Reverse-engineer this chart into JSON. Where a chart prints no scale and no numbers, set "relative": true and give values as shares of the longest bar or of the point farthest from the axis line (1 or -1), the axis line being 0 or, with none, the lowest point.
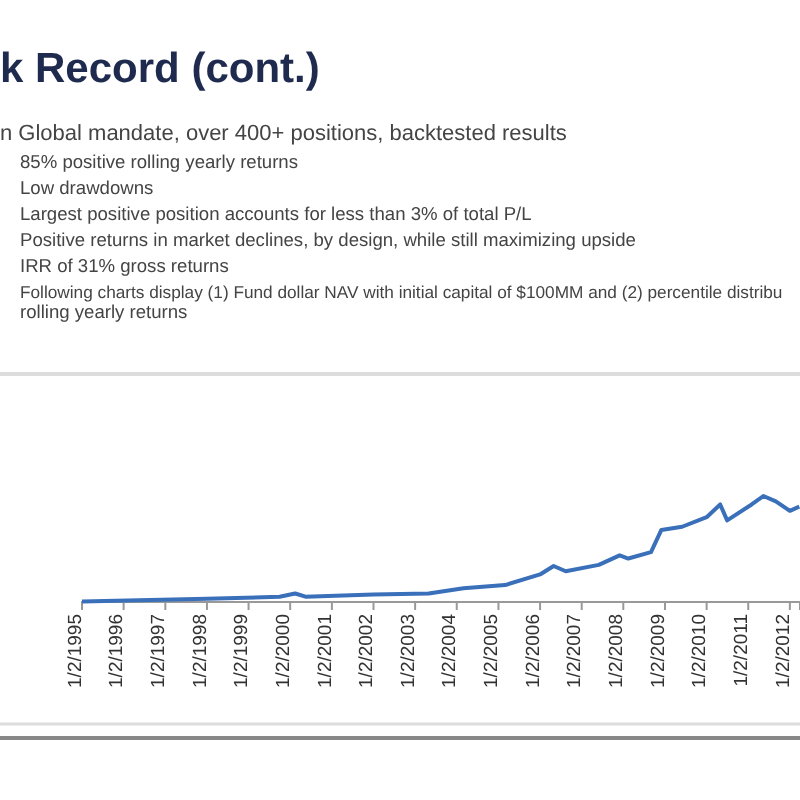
{
  "chart_data": {
    "type": "line",
    "title": "k Record (cont.)",
    "annotations": [
      "n Global mandate, over 400+ positions, backtested results",
      "85% positive rolling yearly returns",
      "Low drawdowns",
      "Largest positive position accounts for less than 3% of total P/L",
      "Positive returns in market declines, by design, while still maximizing upside",
      "IRR of 31% gross returns",
      "Following charts display (1) Fund dollar NAV with initial capital of $100MM and (2) percentile distribu",
      "rolling yearly returns"
    ],
    "relative": true,
    "x": [
      "1995-01-02",
      "1998-01-02",
      "1999-10-01",
      "2000-02-15",
      "2000-05-15",
      "2002-01-02",
      "2003-05-01",
      "2004-03-01",
      "2005-03-01",
      "2006-01-02",
      "2006-05-01",
      "2006-08-15",
      "2007-06-01",
      "2007-12-01",
      "2008-02-15",
      "2008-09-01",
      "2008-12-01",
      "2009-06-01",
      "2010-01-02",
      "2010-05-01",
      "2010-07-01",
      "2011-02-01",
      "2011-05-15",
      "2011-09-01",
      "2012-01-02",
      "2012-03-25"
    ],
    "xlim": [
      "1995-01-02",
      "2012-03-31"
    ],
    "xticks": [
      {
        "value": "1995-01-02",
        "label": "1/2/1995"
      },
      {
        "value": "1996-01-02",
        "label": "1/2/1996"
      },
      {
        "value": "1997-01-02",
        "label": "1/2/1997"
      },
      {
        "value": "1998-01-02",
        "label": "1/2/1998"
      },
      {
        "value": "1999-01-02",
        "label": "1/2/1999"
      },
      {
        "value": "2000-01-02",
        "label": "1/2/2000"
      },
      {
        "value": "2001-01-02",
        "label": "1/2/2001"
      },
      {
        "value": "2002-01-02",
        "label": "1/2/2002"
      },
      {
        "value": "2003-01-02",
        "label": "1/2/2003"
      },
      {
        "value": "2004-01-02",
        "label": "1/2/2004"
      },
      {
        "value": "2005-01-02",
        "label": "1/2/2005"
      },
      {
        "value": "2006-01-02",
        "label": "1/2/2006"
      },
      {
        "value": "2007-01-02",
        "label": "1/2/2007"
      },
      {
        "value": "2008-01-02",
        "label": "1/2/2008"
      },
      {
        "value": "2009-01-02",
        "label": "1/2/2009"
      },
      {
        "value": "2010-01-02",
        "label": "1/2/2010"
      },
      {
        "value": "2011-01-02",
        "label": "1/2/2011"
      },
      {
        "value": "2012-01-02",
        "label": "1/2/2012"
      }
    ],
    "series": [
      {
        "color": "#3a6fba",
        "values": [
          0.005,
          0.03,
          0.05,
          0.08,
          0.05,
          0.07,
          0.08,
          0.13,
          0.16,
          0.26,
          0.34,
          0.29,
          0.35,
          0.44,
          0.41,
          0.47,
          0.68,
          0.71,
          0.8,
          0.92,
          0.77,
          0.92,
          1,
          0.95,
          0.86,
          0.9
        ]
      }
    ]
  }
}
